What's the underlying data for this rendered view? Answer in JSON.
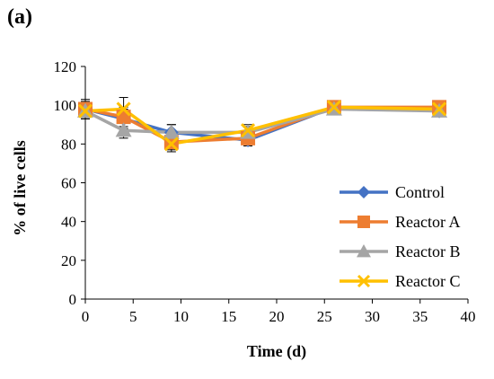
{
  "panel_label": "(a)",
  "chart_data": {
    "type": "line",
    "xlabel": "Time (d)",
    "ylabel": "% of live cells",
    "xlim": [
      0,
      40
    ],
    "ylim": [
      0,
      120
    ],
    "xticks": [
      "0",
      "5",
      "10",
      "15",
      "20",
      "25",
      "30",
      "35",
      "40"
    ],
    "yticks": [
      "0",
      "20",
      "40",
      "60",
      "80",
      "100",
      "120"
    ],
    "grid": false,
    "legend_position": "bottom-right",
    "x": [
      0,
      4,
      9,
      17,
      26,
      37
    ],
    "series": [
      {
        "name": "Control",
        "color": "#4472C4",
        "marker": "diamond",
        "values": [
          98,
          93,
          86,
          82,
          99,
          97
        ],
        "errors": [
          5,
          5,
          4,
          3,
          3,
          2
        ]
      },
      {
        "name": "Reactor A",
        "color": "#ED7D31",
        "marker": "square",
        "values": [
          98,
          94,
          81,
          83,
          99,
          99
        ],
        "errors": [
          4,
          5,
          4,
          3,
          2,
          2
        ]
      },
      {
        "name": "Reactor B",
        "color": "#A5A5A5",
        "marker": "triangle",
        "values": [
          97,
          87,
          86,
          86,
          98,
          97
        ],
        "errors": [
          4,
          4,
          4,
          3,
          2,
          2
        ]
      },
      {
        "name": "Reactor C",
        "color": "#FFC000",
        "marker": "x",
        "values": [
          97,
          98,
          80,
          87,
          99,
          98
        ],
        "errors": [
          4,
          6,
          4,
          3,
          2,
          2
        ]
      }
    ]
  }
}
